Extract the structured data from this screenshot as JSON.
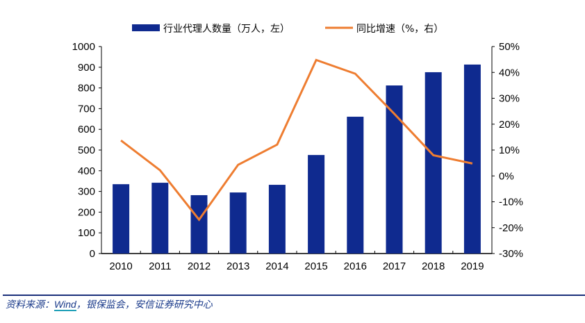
{
  "chart_data": {
    "type": "bar+line",
    "title": "",
    "categories": [
      "2010",
      "2011",
      "2012",
      "2013",
      "2014",
      "2015",
      "2016",
      "2017",
      "2018",
      "2019"
    ],
    "series": [
      {
        "name": "行业代理人数量（万人，左）",
        "type": "bar",
        "axis": "left",
        "color": "#0f2a8f",
        "values": [
          335,
          342,
          282,
          295,
          332,
          476,
          661,
          812,
          876,
          913
        ]
      },
      {
        "name": "同比增速（%，右）",
        "type": "line",
        "axis": "right",
        "color": "#ee7d31",
        "values": [
          13.7,
          2.2,
          -16.9,
          4.3,
          12.1,
          44.8,
          39.5,
          24.0,
          8.0,
          4.8
        ]
      }
    ],
    "left_axis": {
      "range": [
        0,
        1000
      ],
      "ticks": [
        0,
        100,
        200,
        300,
        400,
        500,
        600,
        700,
        800,
        900,
        1000
      ],
      "tick_labels": [
        "0",
        "100",
        "200",
        "300",
        "400",
        "500",
        "600",
        "700",
        "800",
        "900",
        "1000"
      ]
    },
    "right_axis": {
      "range": [
        -30,
        50
      ],
      "ticks": [
        -30,
        -20,
        -10,
        0,
        10,
        20,
        30,
        40,
        50
      ],
      "tick_labels": [
        "-30%",
        "-20%",
        "-10%",
        "0%",
        "10%",
        "20%",
        "30%",
        "40%",
        "50%"
      ]
    },
    "grid": false,
    "legend_position": "top-center"
  },
  "source": {
    "prefix": "资料来源：",
    "link": "Wind",
    "suffix": "，银保监会，安信证券研究中心"
  }
}
